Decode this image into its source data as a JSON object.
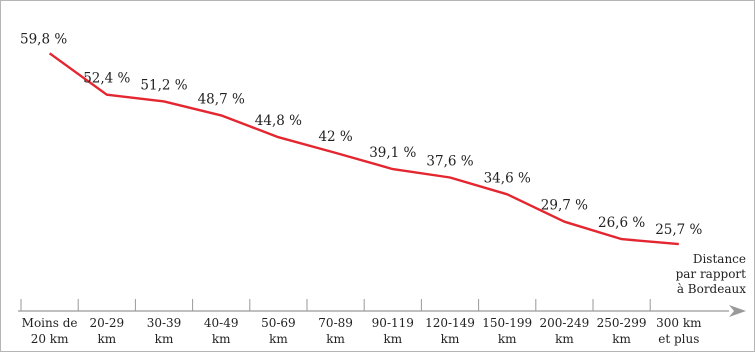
{
  "chart_data": {
    "type": "line",
    "title": "",
    "ylabel": "",
    "xlabel": [
      "Distance",
      "par rapport",
      "à Bordeaux"
    ],
    "categories": [
      [
        "Moins de",
        "20 km"
      ],
      [
        "20-29",
        "km"
      ],
      [
        "30-39",
        "km"
      ],
      [
        "40-49",
        "km"
      ],
      [
        "50-69",
        "km"
      ],
      [
        "70-89",
        "km"
      ],
      [
        "90-119",
        "km"
      ],
      [
        "120-149",
        "km"
      ],
      [
        "150-199",
        "km"
      ],
      [
        "200-249",
        "km"
      ],
      [
        "250-299",
        "km"
      ],
      [
        "300 km",
        "et plus"
      ]
    ],
    "values": [
      59.8,
      52.4,
      51.2,
      48.7,
      44.8,
      42,
      39.1,
      37.6,
      34.6,
      29.7,
      26.6,
      25.7
    ],
    "value_labels": [
      "59,8 %",
      "52,4 %",
      "51,2 %",
      "48,7 %",
      "44,8 %",
      "42 %",
      "39,1 %",
      "37,6 %",
      "34,6 %",
      "29,7 %",
      "26,6 %",
      "25,7 %"
    ],
    "ylim": [
      20,
      62
    ],
    "grid": false,
    "line_color": "#e3262f",
    "axis_color": "#999999"
  }
}
